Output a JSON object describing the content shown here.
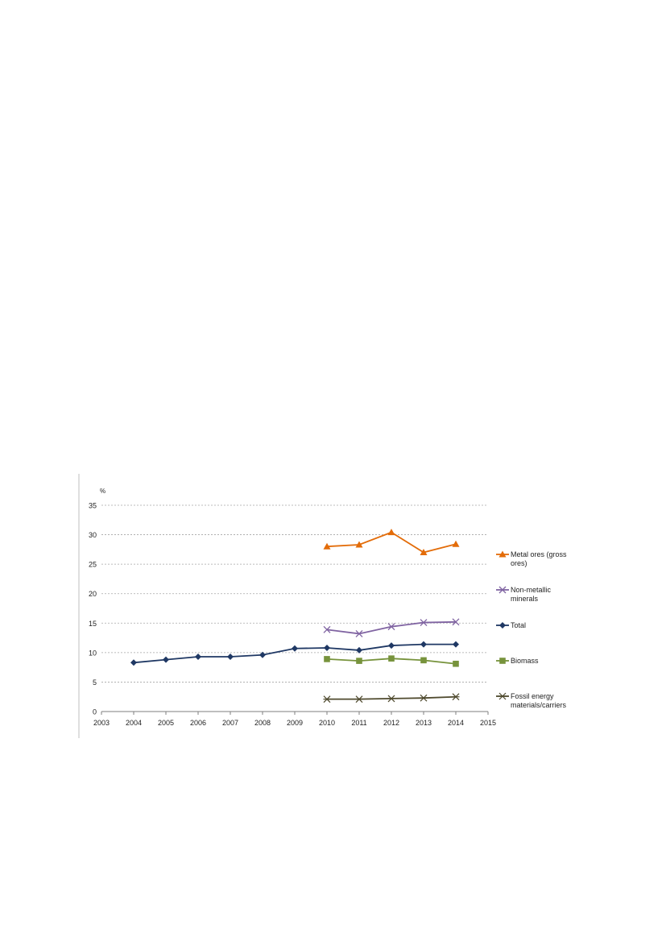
{
  "chart_data": {
    "type": "line",
    "title": "",
    "ylabel": "%",
    "xlabel": "",
    "x": [
      2003,
      2004,
      2005,
      2006,
      2007,
      2008,
      2009,
      2010,
      2011,
      2012,
      2013,
      2014,
      2015
    ],
    "xticks": [
      "2003",
      "2004",
      "2005",
      "2006",
      "2007",
      "2008",
      "2009",
      "2010",
      "2011",
      "2012",
      "2013",
      "2014",
      "2015"
    ],
    "xlim": [
      2003,
      2015
    ],
    "ylim": [
      0,
      35
    ],
    "yticks": [
      "0",
      "5",
      "10",
      "15",
      "20",
      "25",
      "30",
      "35"
    ],
    "grid": "horizontal dashed",
    "legend_position": "right",
    "series": [
      {
        "name": "Metal ores (gross ores)",
        "color": "#e36c09",
        "marker": "triangle",
        "points": [
          [
            2010,
            28.0
          ],
          [
            2011,
            28.3
          ],
          [
            2012,
            30.4
          ],
          [
            2013,
            27.0
          ],
          [
            2014,
            28.4
          ]
        ]
      },
      {
        "name": "Non-metallic minerals",
        "color": "#8064a2",
        "marker": "x",
        "points": [
          [
            2010,
            13.9
          ],
          [
            2011,
            13.2
          ],
          [
            2012,
            14.4
          ],
          [
            2013,
            15.1
          ],
          [
            2014,
            15.2
          ]
        ]
      },
      {
        "name": "Total",
        "color": "#1f3864",
        "marker": "diamond",
        "points": [
          [
            2004,
            8.3
          ],
          [
            2005,
            8.8
          ],
          [
            2006,
            9.3
          ],
          [
            2007,
            9.3
          ],
          [
            2008,
            9.6
          ],
          [
            2009,
            10.7
          ],
          [
            2010,
            10.8
          ],
          [
            2011,
            10.4
          ],
          [
            2012,
            11.2
          ],
          [
            2013,
            11.4
          ],
          [
            2014,
            11.4
          ]
        ]
      },
      {
        "name": "Biomass",
        "color": "#77933c",
        "marker": "square",
        "points": [
          [
            2010,
            8.9
          ],
          [
            2011,
            8.6
          ],
          [
            2012,
            9.0
          ],
          [
            2013,
            8.7
          ],
          [
            2014,
            8.1
          ]
        ]
      },
      {
        "name": "Fossil energy materials/carriers",
        "color": "#4f4a2e",
        "marker": "asterisk",
        "points": [
          [
            2010,
            2.1
          ],
          [
            2011,
            2.1
          ],
          [
            2012,
            2.2
          ],
          [
            2013,
            2.3
          ],
          [
            2014,
            2.5
          ]
        ]
      }
    ]
  }
}
